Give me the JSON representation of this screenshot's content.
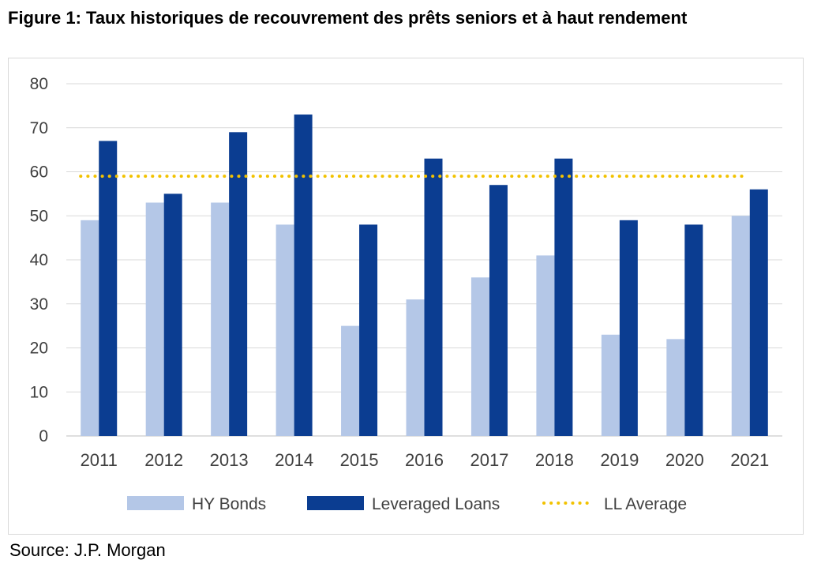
{
  "title": "Figure 1: Taux historiques de recouvrement des prêts seniors et à haut rendement",
  "source": "Source: J.P. Morgan",
  "chart_data": {
    "type": "bar",
    "title": "",
    "xlabel": "",
    "ylabel": "",
    "categories": [
      "2011",
      "2012",
      "2013",
      "2014",
      "2015",
      "2016",
      "2017",
      "2018",
      "2019",
      "2020",
      "2021"
    ],
    "series": [
      {
        "name": "HY Bonds",
        "color": "#b4c7e7",
        "values": [
          49,
          53,
          53,
          48,
          25,
          31,
          36,
          41,
          23,
          22,
          50
        ]
      },
      {
        "name": "Leveraged Loans",
        "color": "#0b3d91",
        "values": [
          67,
          55,
          69,
          73,
          48,
          63,
          57,
          63,
          49,
          48,
          56
        ]
      }
    ],
    "reference_line": {
      "name": "LL Average",
      "value": 59,
      "color": "#f2c200",
      "style": "dotted"
    },
    "ylim": [
      0,
      80
    ],
    "yticks": [
      0,
      10,
      20,
      30,
      40,
      50,
      60,
      70,
      80
    ],
    "grid": true,
    "legend_position": "bottom"
  }
}
